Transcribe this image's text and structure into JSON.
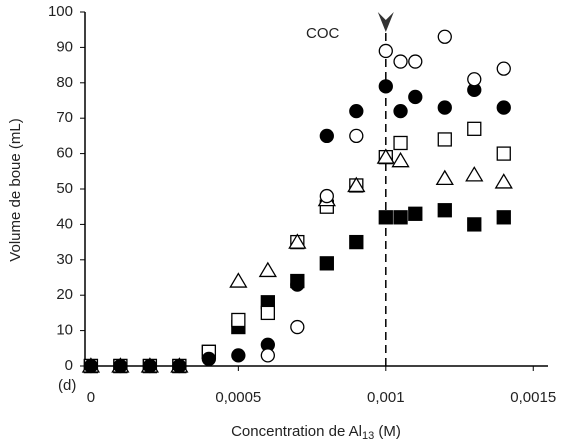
{
  "chart_data": {
    "type": "scatter",
    "ylabel": "Volume de boue (mL)",
    "xlabel_parts": [
      "Concentration de Al",
      "13",
      " (M)"
    ],
    "panel_label": "(d)",
    "annotation": "COC",
    "vline": 0.001,
    "xlim": [
      -2e-05,
      0.00155
    ],
    "ylim": [
      0,
      100
    ],
    "xticks": [
      0,
      {
        "value": 0.0005,
        "label": "0,0005"
      },
      {
        "value": 0.001,
        "label": "0,001"
      },
      {
        "value": 0.0015,
        "label": "0,0015"
      }
    ],
    "yticks": [
      0,
      10,
      20,
      30,
      40,
      50,
      60,
      70,
      80,
      90,
      100
    ],
    "color": "#000000",
    "series": [
      {
        "marker": "square-filled",
        "x": [
          0,
          0.0001,
          0.0002,
          0.0003,
          0.0004,
          0.0005,
          0.0006,
          0.0007,
          0.0008,
          0.0009,
          0.001,
          0.00105,
          0.0011,
          0.0012,
          0.0013,
          0.0014
        ],
        "values": [
          0,
          0,
          0,
          0,
          4,
          11,
          18,
          24,
          29,
          35,
          42,
          42,
          43,
          44,
          40,
          42
        ]
      },
      {
        "marker": "square-open",
        "x": [
          0,
          0.0001,
          0.0002,
          0.0003,
          0.0004,
          0.0005,
          0.0006,
          0.0007,
          0.0008,
          0.0009,
          0.001,
          0.00105,
          0.0012,
          0.0013,
          0.0014
        ],
        "values": [
          0,
          0,
          0,
          0,
          4,
          13,
          15,
          35,
          45,
          51,
          59,
          63,
          64,
          67,
          60
        ]
      },
      {
        "marker": "triangle-open",
        "x": [
          0,
          0.0001,
          0.0002,
          0.0003,
          0.0005,
          0.0006,
          0.0007,
          0.0008,
          0.0009,
          0.001,
          0.00105,
          0.0012,
          0.0013,
          0.0014
        ],
        "values": [
          0,
          0,
          0,
          0,
          24,
          27,
          35,
          47,
          51,
          59,
          58,
          53,
          54,
          52
        ]
      },
      {
        "marker": "circle-filled",
        "x": [
          0,
          0.0001,
          0.0002,
          0.0003,
          0.0004,
          0.0005,
          0.0006,
          0.0007,
          0.0008,
          0.0009,
          0.001,
          0.00105,
          0.0011,
          0.0012,
          0.0013,
          0.0014
        ],
        "values": [
          0,
          0,
          0,
          0,
          2,
          3,
          6,
          23,
          65,
          72,
          79,
          72,
          76,
          73,
          78,
          73
        ]
      },
      {
        "marker": "circle-open",
        "x": [
          0.0006,
          0.0007,
          0.0008,
          0.0009,
          0.001,
          0.00105,
          0.0011,
          0.0012,
          0.0013,
          0.0014
        ],
        "values": [
          3,
          11,
          48,
          65,
          89,
          86,
          86,
          93,
          81,
          84
        ]
      }
    ]
  }
}
